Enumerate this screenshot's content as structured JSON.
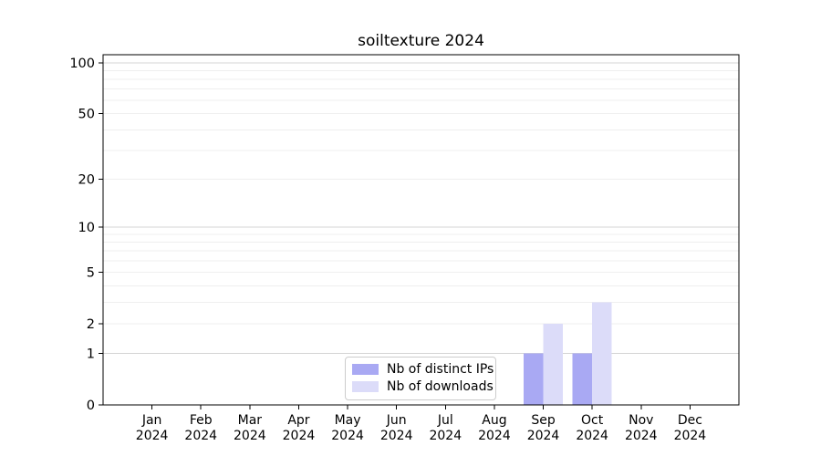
{
  "chart_data": {
    "type": "bar",
    "title": "soiltexture 2024",
    "categories": [
      "Jan",
      "Feb",
      "Mar",
      "Apr",
      "May",
      "Jun",
      "Jul",
      "Aug",
      "Sep",
      "Oct",
      "Nov",
      "Dec"
    ],
    "x_year_label": "2024",
    "series": [
      {
        "name": "Nb of distinct IPs",
        "color": "#a9a9f3",
        "values": [
          0,
          0,
          0,
          0,
          0,
          0,
          0,
          0,
          1,
          1,
          0,
          0
        ]
      },
      {
        "name": "Nb of downloads",
        "color": "#dcdcf9",
        "values": [
          0,
          0,
          0,
          0,
          0,
          0,
          0,
          0,
          2,
          3,
          0,
          0
        ]
      }
    ],
    "yscale": "log1p",
    "y_ticks": [
      0,
      1,
      2,
      5,
      10,
      20,
      50,
      100
    ],
    "ylim": [
      0,
      112
    ],
    "grid": "horizontal major+minor (log decades)",
    "legend_position": "lower center"
  }
}
